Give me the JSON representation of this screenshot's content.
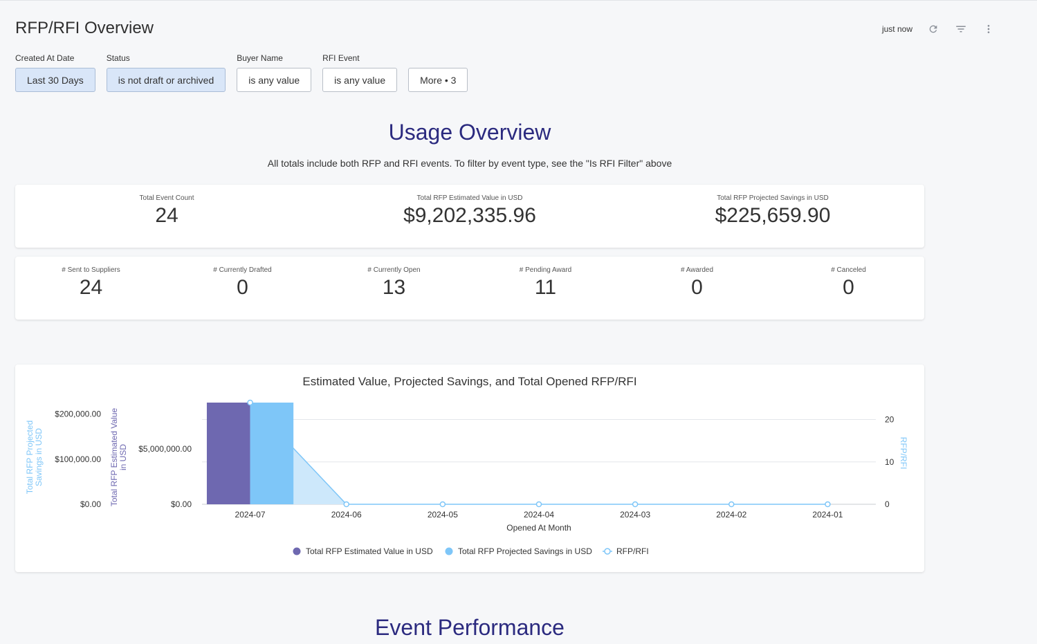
{
  "header": {
    "title": "RFP/RFI Overview",
    "updated": "just now"
  },
  "filters": [
    {
      "label": "Created At Date",
      "value": "Last 30 Days",
      "active": true
    },
    {
      "label": "Status",
      "value": "is not draft or archived",
      "active": true
    },
    {
      "label": "Buyer Name",
      "value": "is any value",
      "active": false
    },
    {
      "label": "RFI Event",
      "value": "is any value",
      "active": false
    },
    {
      "label": "",
      "value": "More • 3",
      "active": false
    }
  ],
  "usage": {
    "title": "Usage Overview",
    "subtitle": "All totals include both RFP and RFI events. To filter by event type, see the \"Is RFI Filter\" above"
  },
  "totals": [
    {
      "label": "Total Event Count",
      "value": "24"
    },
    {
      "label": "Total RFP Estimated Value in USD",
      "value": "$9,202,335.96"
    },
    {
      "label": "Total RFP Projected Savings in USD",
      "value": "$225,659.90"
    }
  ],
  "statuses": [
    {
      "label": "# Sent to Suppliers",
      "value": "24"
    },
    {
      "label": "# Currently Drafted",
      "value": "0"
    },
    {
      "label": "# Currently Open",
      "value": "13"
    },
    {
      "label": "# Pending Award",
      "value": "11"
    },
    {
      "label": "# Awarded",
      "value": "0"
    },
    {
      "label": "# Canceled",
      "value": "0"
    }
  ],
  "chart_data": {
    "type": "bar",
    "title": "Estimated Value, Projected Savings, and Total Opened RFP/RFI",
    "xlabel": "Opened At Month",
    "categories": [
      "2024-07",
      "2024-06",
      "2024-05",
      "2024-04",
      "2024-03",
      "2024-02",
      "2024-01"
    ],
    "series": [
      {
        "name": "Total RFP Estimated Value in USD",
        "type": "bar",
        "axis": "y_value",
        "color": "#6e68b0",
        "values": [
          9202335.96,
          0,
          0,
          0,
          0,
          0,
          0
        ]
      },
      {
        "name": "Total RFP Projected Savings in USD",
        "type": "bar",
        "axis": "y_savings",
        "color": "#7ec6f8",
        "values": [
          225659.9,
          0,
          0,
          0,
          0,
          0,
          0
        ]
      },
      {
        "name": "RFP/RFI",
        "type": "area",
        "axis": "y_count",
        "color": "#7ec6f8",
        "values": [
          24,
          0,
          0,
          0,
          0,
          0,
          0
        ]
      }
    ],
    "axes": {
      "y_savings": {
        "label": "Total RFP Projected Savings in USD",
        "ticks": [
          "$0.00",
          "$100,000.00",
          "$200,000.00"
        ],
        "range": [
          0,
          225659.9
        ]
      },
      "y_value": {
        "label": "Total RFP Estimated Value in USD",
        "ticks": [
          "$0.00",
          "$5,000,000.00"
        ],
        "range": [
          0,
          9202335.96
        ]
      },
      "y_count": {
        "label": "RFP/RFI",
        "ticks": [
          "0",
          "10",
          "20"
        ],
        "range": [
          0,
          24
        ]
      }
    },
    "grid": true,
    "legend": "bottom"
  },
  "performance": {
    "title": "Event Performance"
  },
  "colors": {
    "accent": "#2b2a7f",
    "filter_active": "#d9e6f8"
  },
  "icons": [
    "refresh-icon",
    "filter-icon",
    "more-vert-icon"
  ]
}
